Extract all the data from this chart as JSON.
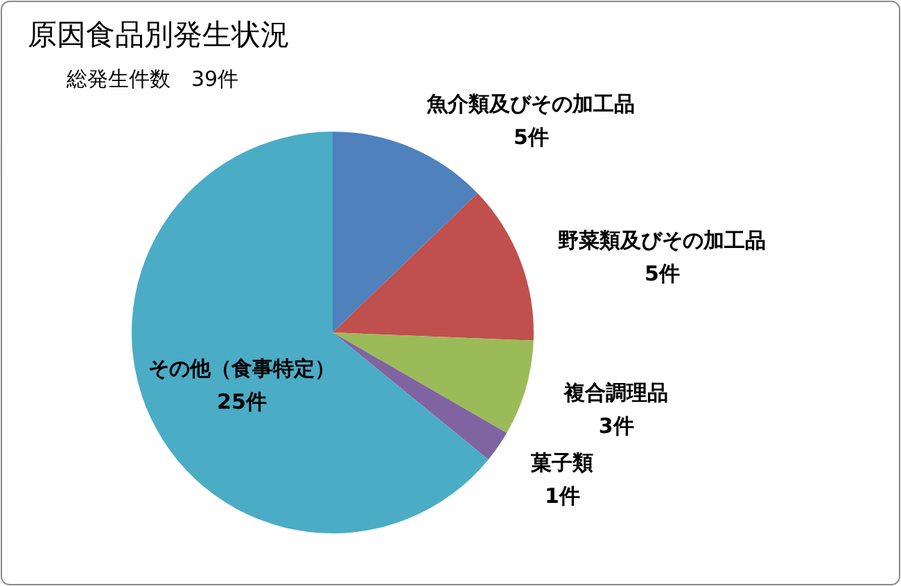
{
  "chart_data": {
    "type": "pie",
    "title": "原因食品別発生状況",
    "subtitle": "総発生件数　39件",
    "categories": [
      "魚介類及びその加工品",
      "野菜類及びその加工品",
      "複合調理品",
      "菓子類",
      "その他（食事特定）"
    ],
    "values": [
      5,
      5,
      3,
      1,
      25
    ],
    "value_labels": [
      "5件",
      "5件",
      "3件",
      "1件",
      "25件"
    ],
    "colors": [
      "#4f81bd",
      "#c0504d",
      "#9bbb59",
      "#8064a2",
      "#4bacc6"
    ]
  }
}
